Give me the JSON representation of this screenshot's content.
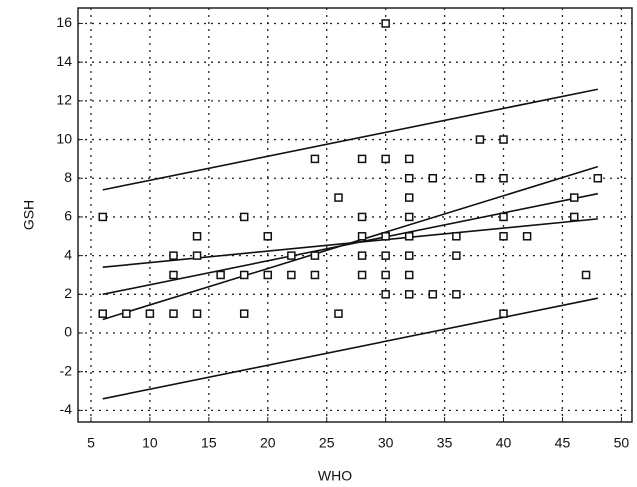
{
  "chart_data": {
    "type": "scatter",
    "xlabel": "WHO",
    "ylabel": "GSH",
    "xlim": [
      3.9,
      50.9
    ],
    "xticks": [
      5,
      10,
      15,
      20,
      25,
      30,
      35,
      40,
      45,
      50
    ],
    "ylim": [
      -4.6,
      16.8
    ],
    "yticks": [
      -4,
      -2,
      0,
      2,
      4,
      6,
      8,
      10,
      12,
      14,
      16
    ],
    "grid": true,
    "color": "#111111",
    "x": [
      6,
      6,
      8,
      10,
      12,
      12,
      12,
      14,
      14,
      14,
      16,
      18,
      18,
      18,
      20,
      20,
      22,
      22,
      24,
      24,
      24,
      26,
      26,
      28,
      28,
      28,
      28,
      28,
      30,
      30,
      30,
      30,
      30,
      30,
      32,
      32,
      32,
      32,
      32,
      32,
      32,
      32,
      34,
      34,
      36,
      36,
      36,
      38,
      38,
      40,
      40,
      40,
      40,
      40,
      42,
      46,
      46,
      47,
      48
    ],
    "y": [
      6,
      1,
      1,
      1,
      1,
      3,
      4,
      1,
      4,
      5,
      3,
      1,
      3,
      6,
      3,
      5,
      3,
      4,
      3,
      4,
      9,
      1,
      7,
      3,
      4,
      5,
      6,
      9,
      2,
      3,
      4,
      5,
      9,
      16,
      2,
      3,
      4,
      5,
      6,
      7,
      8,
      9,
      2,
      8,
      2,
      4,
      5,
      8,
      10,
      1,
      5,
      6,
      8,
      10,
      5,
      6,
      7,
      3,
      8
    ],
    "lines": [
      {
        "x": [
          6,
          48
        ],
        "y": [
          7.4,
          12.6
        ]
      },
      {
        "x": [
          6,
          48
        ],
        "y": [
          3.4,
          5.9
        ]
      },
      {
        "x": [
          6,
          48
        ],
        "y": [
          2.0,
          7.2
        ]
      },
      {
        "x": [
          6,
          48
        ],
        "y": [
          0.7,
          8.6
        ]
      },
      {
        "x": [
          6,
          48
        ],
        "y": [
          -3.4,
          1.8
        ]
      }
    ]
  }
}
